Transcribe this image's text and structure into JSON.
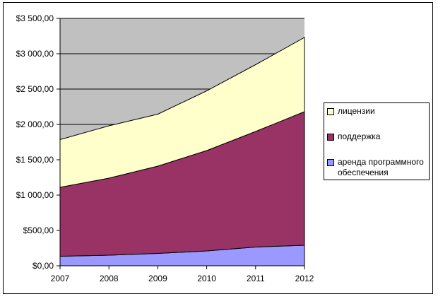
{
  "chart_data": {
    "type": "area",
    "stacked": true,
    "x": [
      "2007",
      "2008",
      "2009",
      "2010",
      "2011",
      "2012"
    ],
    "series": [
      {
        "name": "аренда программного обеспечения",
        "color": "#9999ff",
        "values": [
          135,
          150,
          175,
          210,
          265,
          290
        ]
      },
      {
        "name": "поддержка",
        "color": "#993366",
        "values": [
          975,
          1090,
          1235,
          1420,
          1635,
          1890
        ]
      },
      {
        "name": "лицензии",
        "color": "#ffffcc",
        "values": [
          675,
          740,
          735,
          845,
          945,
          1050
        ]
      }
    ],
    "ylim": [
      0,
      3500
    ],
    "yticks": [
      "$0,00",
      "$500,00",
      "$1 000,00",
      "$1 500,00",
      "$2 000,00",
      "$2 500,00",
      "$3 000,00",
      "$3 500,00"
    ],
    "plot_background": "#c0c0c0",
    "grid": true,
    "legend_position": "right"
  }
}
